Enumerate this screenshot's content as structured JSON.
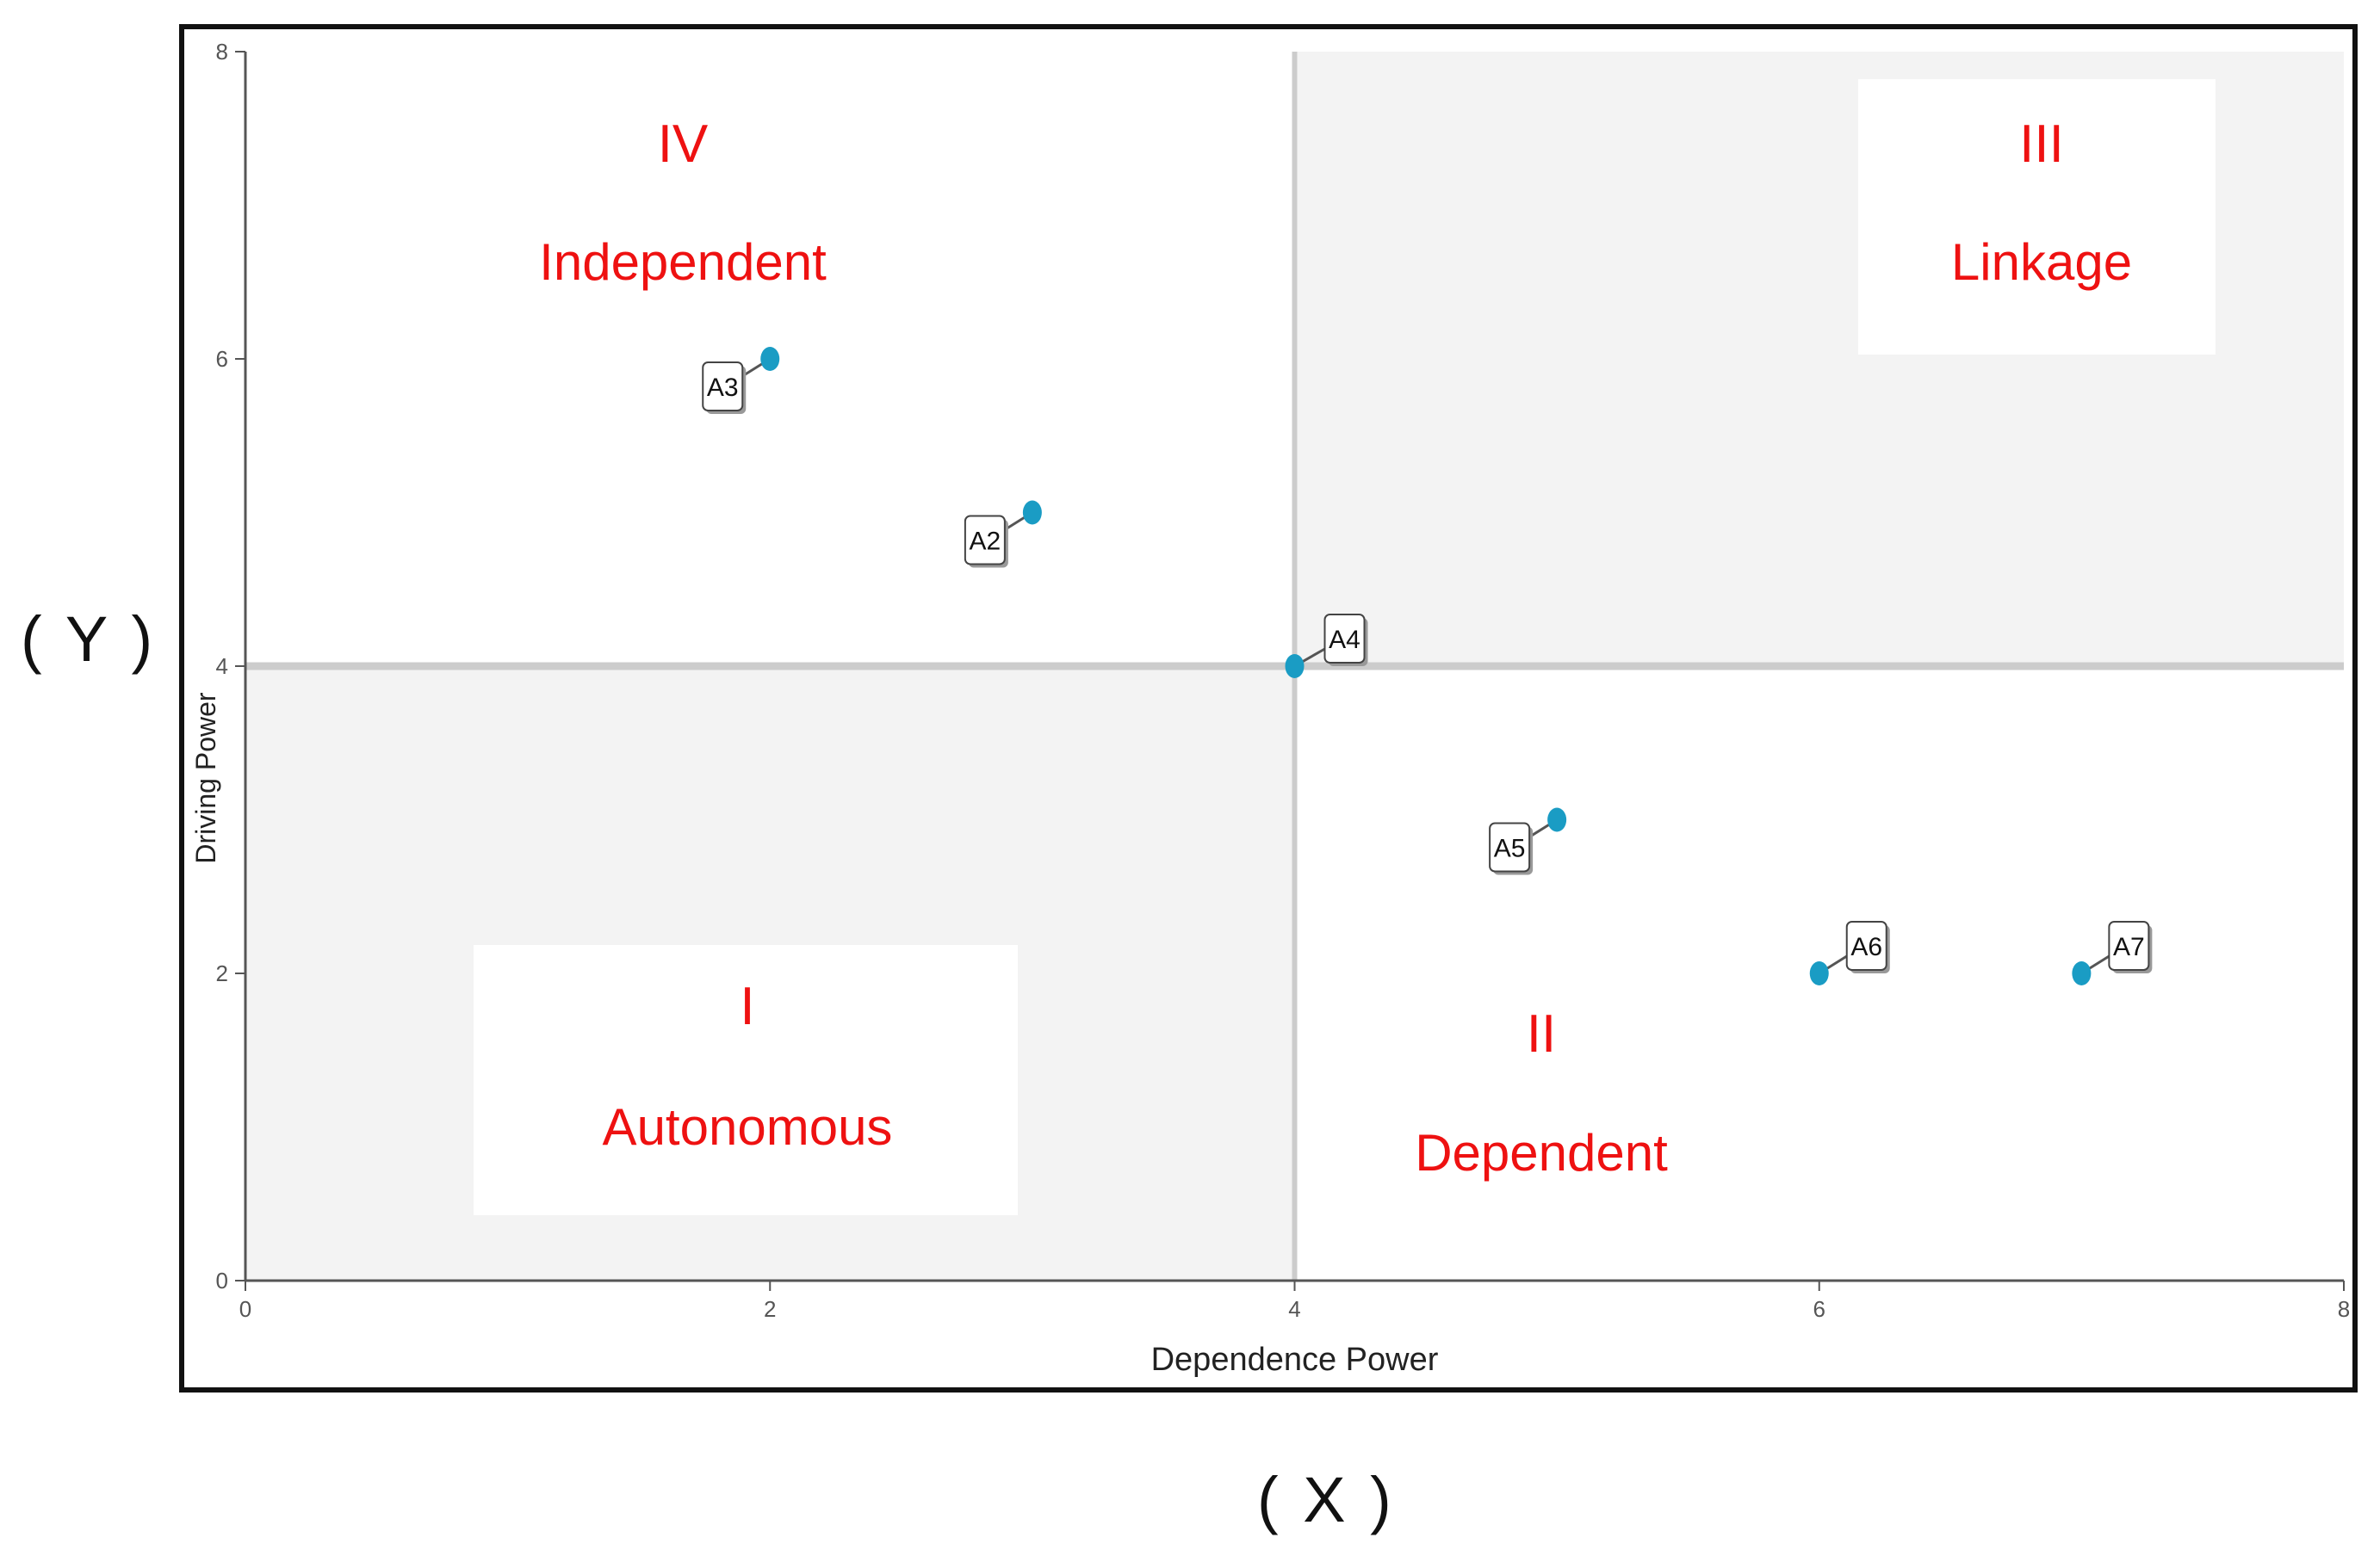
{
  "outer_labels": {
    "y": "( Y )",
    "x": "( X )"
  },
  "chart_data": {
    "type": "scatter",
    "xlabel": "Dependence Power",
    "ylabel": "Driving Power",
    "xlim": [
      0,
      8
    ],
    "ylim": [
      0,
      8
    ],
    "xticks": [
      "0",
      "2",
      "4",
      "6",
      "8"
    ],
    "yticks": [
      "0",
      "2",
      "4",
      "6",
      "8"
    ],
    "grid": false,
    "divider_x": 4,
    "divider_y": 4,
    "points": [
      {
        "label": "A3",
        "x": 2,
        "y": 6
      },
      {
        "label": "A2",
        "x": 3,
        "y": 5
      },
      {
        "label": "A4",
        "x": 4,
        "y": 4
      },
      {
        "label": "A5",
        "x": 5,
        "y": 3
      },
      {
        "label": "A6",
        "x": 6,
        "y": 2
      },
      {
        "label": "A7",
        "x": 7,
        "y": 2
      }
    ],
    "quadrants": [
      {
        "numeral": "IV",
        "name": "Independent"
      },
      {
        "numeral": "III",
        "name": "Linkage"
      },
      {
        "numeral": "I",
        "name": "Autonomous"
      },
      {
        "numeral": "II",
        "name": "Dependent"
      }
    ],
    "colors": {
      "point": "#1a9cc4",
      "quadrant_text": "#ee1111",
      "shaded_quadrant": "#f3f3f3",
      "divider": "#cccccc",
      "axis": "#555555"
    }
  }
}
